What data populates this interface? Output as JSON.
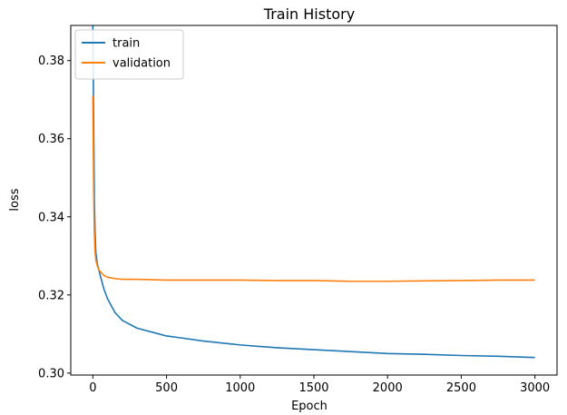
{
  "chart_data": {
    "type": "line",
    "title": "Train History",
    "xlabel": "Epoch",
    "ylabel": "loss",
    "xlim": [
      -150,
      3150
    ],
    "ylim": [
      0.2995,
      0.389
    ],
    "grid": false,
    "legend_position": "top-left",
    "xticks": [
      0,
      500,
      1000,
      1500,
      2000,
      2500,
      3000
    ],
    "xtick_labels": [
      "0",
      "500",
      "1000",
      "1500",
      "2000",
      "2500",
      "3000"
    ],
    "yticks": [
      0.3,
      0.32,
      0.34,
      0.36,
      0.38
    ],
    "ytick_labels": [
      "0.30",
      "0.32",
      "0.34",
      "0.36",
      "0.38"
    ],
    "series": [
      {
        "name": "train",
        "color": "#1f77b4",
        "x": [
          0,
          5,
          10,
          15,
          20,
          30,
          40,
          50,
          75,
          100,
          150,
          200,
          300,
          400,
          500,
          600,
          750,
          1000,
          1250,
          1500,
          1750,
          2000,
          2250,
          2500,
          2750,
          3000
        ],
        "y": [
          0.389,
          0.366,
          0.345,
          0.336,
          0.331,
          0.328,
          0.3265,
          0.325,
          0.3215,
          0.319,
          0.3155,
          0.3135,
          0.3115,
          0.3105,
          0.3095,
          0.309,
          0.3082,
          0.3072,
          0.3065,
          0.306,
          0.3055,
          0.305,
          0.3048,
          0.3045,
          0.3043,
          0.304
        ]
      },
      {
        "name": "validation",
        "color": "#ff7f0e",
        "x": [
          0,
          5,
          10,
          15,
          20,
          30,
          40,
          50,
          75,
          100,
          150,
          200,
          300,
          500,
          750,
          1000,
          1250,
          1500,
          1750,
          2000,
          2250,
          2500,
          2750,
          3000
        ],
        "y": [
          0.371,
          0.348,
          0.336,
          0.331,
          0.329,
          0.3275,
          0.3265,
          0.326,
          0.325,
          0.3245,
          0.3242,
          0.324,
          0.324,
          0.3238,
          0.3238,
          0.3238,
          0.3237,
          0.3237,
          0.3235,
          0.3235,
          0.3236,
          0.3237,
          0.3238,
          0.3238
        ]
      }
    ]
  }
}
